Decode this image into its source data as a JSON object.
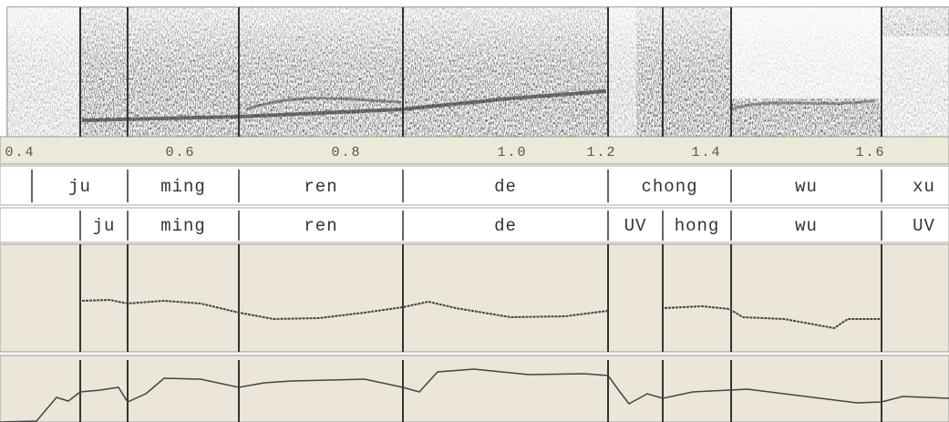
{
  "time_axis": {
    "ticks": [
      "0.4",
      "0.6",
      "0.8",
      "1.0",
      "1.2",
      "1.4",
      "1.6"
    ]
  },
  "tiers": [
    {
      "labels": [
        "ju",
        "ming",
        "ren",
        "de",
        "chong",
        "wu",
        "xu"
      ]
    },
    {
      "labels": [
        "ju",
        "ming",
        "ren",
        "de",
        "UV",
        "hong",
        "wu",
        "UV"
      ]
    }
  ]
}
